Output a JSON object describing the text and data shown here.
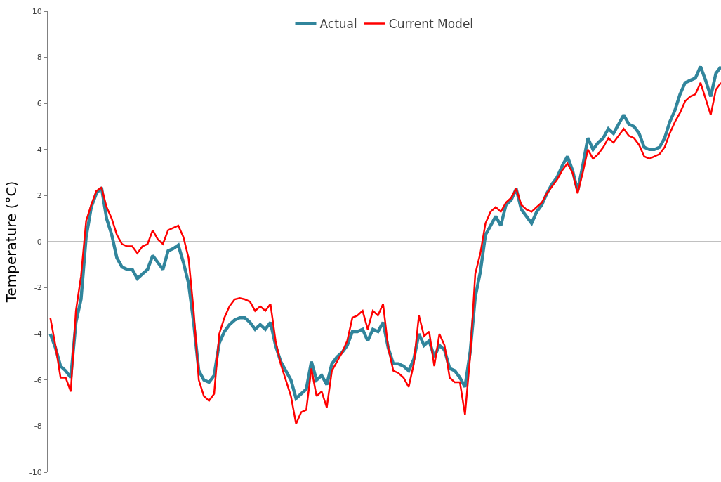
{
  "chart_data": {
    "type": "line",
    "ylabel": "Temperature (°C)",
    "categories": [
      null,
      null,
      null,
      null,
      null,
      null,
      null,
      null,
      null,
      null,
      null,
      null,
      null,
      null,
      null,
      null,
      null,
      null,
      null,
      null,
      null,
      null,
      null,
      null,
      null,
      null,
      null,
      null,
      null,
      null,
      null,
      null,
      null,
      null,
      null,
      null,
      null,
      null,
      null,
      null,
      null,
      null,
      null,
      null,
      null,
      null,
      null,
      null,
      null,
      null,
      null,
      null,
      null,
      null,
      null,
      null,
      null,
      null,
      null,
      null,
      null,
      null,
      null,
      null,
      null,
      null,
      null,
      null,
      null,
      null,
      null,
      null,
      null,
      null,
      null,
      null,
      null,
      null,
      null,
      null,
      null,
      null,
      null,
      null,
      null,
      null,
      null,
      null,
      null,
      null,
      null,
      null,
      null,
      null,
      null,
      null,
      null,
      null,
      null,
      null,
      null,
      null,
      null,
      null,
      null,
      null,
      null,
      null,
      null,
      null,
      null,
      null,
      null,
      null,
      null,
      null,
      null,
      null,
      null,
      null,
      null,
      null,
      null,
      null,
      null,
      null,
      null,
      null,
      null,
      null,
      null,
      null
    ],
    "series": [
      {
        "name": "Actual",
        "color": "#31859c",
        "values": [
          -4.0,
          -4.6,
          -5.4,
          -5.6,
          -5.9,
          -3.5,
          -2.5,
          0.2,
          1.5,
          2.1,
          2.35,
          1.0,
          0.3,
          -0.7,
          -1.1,
          -1.2,
          -1.2,
          -1.6,
          -1.4,
          -1.2,
          -0.6,
          -0.9,
          -1.2,
          -0.4,
          -0.3,
          -0.15,
          -0.9,
          -1.8,
          -3.5,
          -5.6,
          -6.0,
          -6.1,
          -5.8,
          -4.4,
          -3.9,
          -3.6,
          -3.4,
          -3.3,
          -3.3,
          -3.5,
          -3.8,
          -3.6,
          -3.8,
          -3.5,
          -4.5,
          -5.2,
          -5.6,
          -6.0,
          -6.8,
          -6.6,
          -6.4,
          -5.2,
          -6.0,
          -5.8,
          -6.2,
          -5.3,
          -5.0,
          -4.8,
          -4.5,
          -3.9,
          -3.9,
          -3.8,
          -4.3,
          -3.8,
          -3.9,
          -3.5,
          -4.6,
          -5.3,
          -5.3,
          -5.4,
          -5.6,
          -5.1,
          -4.0,
          -4.5,
          -4.3,
          -5.0,
          -4.5,
          -4.7,
          -5.5,
          -5.6,
          -5.9,
          -6.3,
          -4.8,
          -2.4,
          -1.3,
          0.3,
          0.7,
          1.1,
          0.7,
          1.6,
          1.8,
          2.3,
          1.4,
          1.1,
          0.8,
          1.3,
          1.6,
          2.1,
          2.5,
          2.8,
          3.3,
          3.7,
          3.1,
          2.2,
          3.3,
          4.5,
          4.0,
          4.3,
          4.5,
          4.9,
          4.7,
          5.1,
          5.5,
          5.1,
          5.0,
          4.7,
          4.1,
          4.0,
          4.0,
          4.1,
          4.5,
          5.2,
          5.7,
          6.4,
          6.9,
          7.0,
          7.1,
          7.6,
          7.0,
          6.3,
          7.3,
          7.6
        ]
      },
      {
        "name": "Current Model",
        "color": "#ff0000",
        "values": [
          -3.3,
          -4.5,
          -5.9,
          -5.9,
          -6.5,
          -3.0,
          -1.5,
          0.9,
          1.6,
          2.2,
          2.35,
          1.5,
          1.0,
          0.3,
          -0.1,
          -0.2,
          -0.2,
          -0.5,
          -0.2,
          -0.1,
          0.5,
          0.1,
          -0.1,
          0.5,
          0.6,
          0.7,
          0.2,
          -0.7,
          -3.0,
          -6.0,
          -6.7,
          -6.9,
          -6.6,
          -4.0,
          -3.3,
          -2.8,
          -2.5,
          -2.45,
          -2.5,
          -2.6,
          -3.0,
          -2.8,
          -3.0,
          -2.7,
          -4.3,
          -5.3,
          -6.0,
          -6.7,
          -7.9,
          -7.4,
          -7.3,
          -5.5,
          -6.7,
          -6.5,
          -7.2,
          -5.6,
          -5.2,
          -4.8,
          -4.3,
          -3.3,
          -3.2,
          -3.0,
          -3.8,
          -3.0,
          -3.2,
          -2.7,
          -4.6,
          -5.6,
          -5.7,
          -5.9,
          -6.3,
          -5.3,
          -3.2,
          -4.1,
          -3.9,
          -5.4,
          -4.0,
          -4.5,
          -5.9,
          -6.1,
          -6.1,
          -7.5,
          -5.0,
          -1.4,
          -0.5,
          0.8,
          1.3,
          1.5,
          1.3,
          1.7,
          1.9,
          2.3,
          1.6,
          1.4,
          1.3,
          1.5,
          1.7,
          2.1,
          2.4,
          2.7,
          3.1,
          3.4,
          3.0,
          2.1,
          3.0,
          4.0,
          3.6,
          3.8,
          4.1,
          4.5,
          4.3,
          4.6,
          4.9,
          4.6,
          4.5,
          4.2,
          3.7,
          3.6,
          3.7,
          3.8,
          4.1,
          4.7,
          5.2,
          5.6,
          6.1,
          6.3,
          6.4,
          6.9,
          6.2,
          5.5,
          6.6,
          6.9
        ]
      }
    ],
    "ylim": [
      -10,
      10
    ],
    "yticks": [
      -10,
      -8,
      -6,
      -4,
      -2,
      0,
      2,
      4,
      6,
      8,
      10
    ],
    "ref_lines": [
      {
        "axis": "y",
        "value": 0,
        "color": "#808080"
      }
    ],
    "tick_labels": "y",
    "grid": false,
    "legend": "top",
    "marker": "none",
    "line_style": "solid"
  }
}
